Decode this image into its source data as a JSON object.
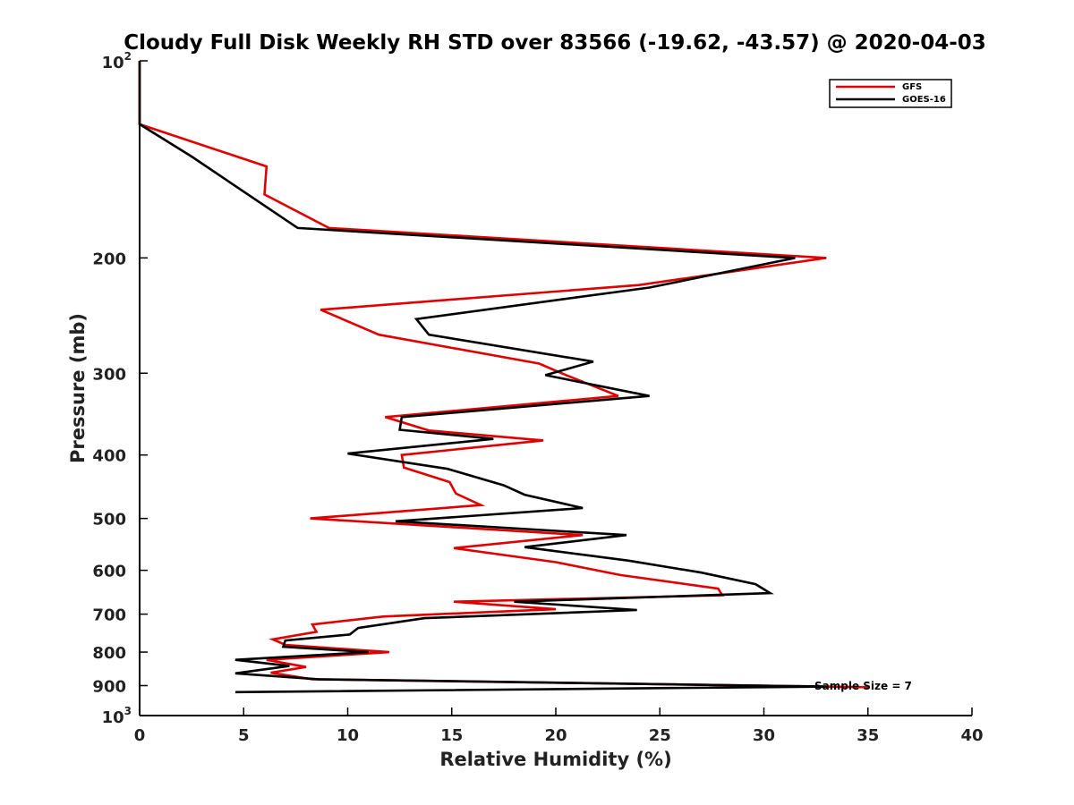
{
  "chart_data": {
    "type": "line",
    "title": "Cloudy Full Disk Weekly RH STD over 83566 (-19.62, -43.57) @ 2020-04-03",
    "xlabel": "Relative Humidity (%)",
    "ylabel": "Pressure (mb)",
    "xlim": [
      0,
      40
    ],
    "ylim": [
      100,
      1000
    ],
    "yscale": "log",
    "yreversed": true,
    "grid": false,
    "legend": "top-right",
    "xticks": [
      0,
      5,
      10,
      15,
      20,
      25,
      30,
      35,
      40
    ],
    "xtick_labels": [
      "0",
      "5",
      "10",
      "15",
      "20",
      "25",
      "30",
      "35",
      "40"
    ],
    "yticks": [
      {
        "value": 100,
        "base": "10",
        "exp": "2"
      },
      {
        "value": 200,
        "label": "200"
      },
      {
        "value": 300,
        "label": "300"
      },
      {
        "value": 400,
        "label": "400"
      },
      {
        "value": 500,
        "label": "500"
      },
      {
        "value": 600,
        "label": "600"
      },
      {
        "value": 700,
        "label": "700"
      },
      {
        "value": 800,
        "label": "800"
      },
      {
        "value": 900,
        "label": "900"
      },
      {
        "value": 1000,
        "base": "10",
        "exp": "3"
      }
    ],
    "annotation": "Sample Size = 7",
    "series": [
      {
        "name": "GFS",
        "color": "#e00000",
        "points": [
          [
            0.0,
            100
          ],
          [
            0.0,
            125
          ],
          [
            6.1,
            145
          ],
          [
            6.0,
            160
          ],
          [
            9.1,
            180
          ],
          [
            33.0,
            200
          ],
          [
            24.0,
            220
          ],
          [
            8.7,
            240
          ],
          [
            11.5,
            262
          ],
          [
            19.2,
            290
          ],
          [
            20.5,
            302
          ],
          [
            23.0,
            325
          ],
          [
            11.8,
            350
          ],
          [
            13.9,
            367
          ],
          [
            19.4,
            380
          ],
          [
            12.6,
            400
          ],
          [
            12.7,
            418
          ],
          [
            14.9,
            440
          ],
          [
            15.2,
            458
          ],
          [
            16.4,
            477
          ],
          [
            8.2,
            500
          ],
          [
            21.3,
            530
          ],
          [
            15.1,
            555
          ],
          [
            20.0,
            583
          ],
          [
            23.1,
            610
          ],
          [
            27.8,
            640
          ],
          [
            28.0,
            655
          ],
          [
            15.1,
            670
          ],
          [
            20.0,
            688
          ],
          [
            11.7,
            706
          ],
          [
            8.3,
            726
          ],
          [
            8.5,
            745
          ],
          [
            6.4,
            765
          ],
          [
            7.0,
            780
          ],
          [
            12.0,
            800
          ],
          [
            6.1,
            822
          ],
          [
            8.0,
            843
          ],
          [
            6.3,
            860
          ],
          [
            8.3,
            880
          ],
          [
            35.0,
            905
          ]
        ]
      },
      {
        "name": "GOES-16",
        "color": "#000000",
        "points": [
          [
            0.0,
            100
          ],
          [
            0.0,
            125
          ],
          [
            2.5,
            140
          ],
          [
            7.6,
            180
          ],
          [
            31.5,
            200
          ],
          [
            24.5,
            222
          ],
          [
            13.3,
            248
          ],
          [
            13.9,
            262
          ],
          [
            21.8,
            288
          ],
          [
            19.5,
            302
          ],
          [
            24.5,
            325
          ],
          [
            12.6,
            350
          ],
          [
            12.5,
            366
          ],
          [
            17.0,
            378
          ],
          [
            10.0,
            398
          ],
          [
            14.8,
            420
          ],
          [
            17.5,
            445
          ],
          [
            18.5,
            460
          ],
          [
            21.3,
            482
          ],
          [
            12.3,
            505
          ],
          [
            23.4,
            530
          ],
          [
            18.5,
            553
          ],
          [
            23.5,
            580
          ],
          [
            27.0,
            605
          ],
          [
            29.6,
            630
          ],
          [
            30.3,
            650
          ],
          [
            18.0,
            670
          ],
          [
            23.9,
            690
          ],
          [
            13.7,
            710
          ],
          [
            10.5,
            735
          ],
          [
            10.1,
            752
          ],
          [
            7.0,
            768
          ],
          [
            6.9,
            785
          ],
          [
            11.0,
            800
          ],
          [
            4.6,
            822
          ],
          [
            7.2,
            840
          ],
          [
            4.6,
            862
          ],
          [
            8.6,
            880
          ],
          [
            33.0,
            903
          ],
          [
            4.6,
            921
          ]
        ]
      }
    ]
  }
}
